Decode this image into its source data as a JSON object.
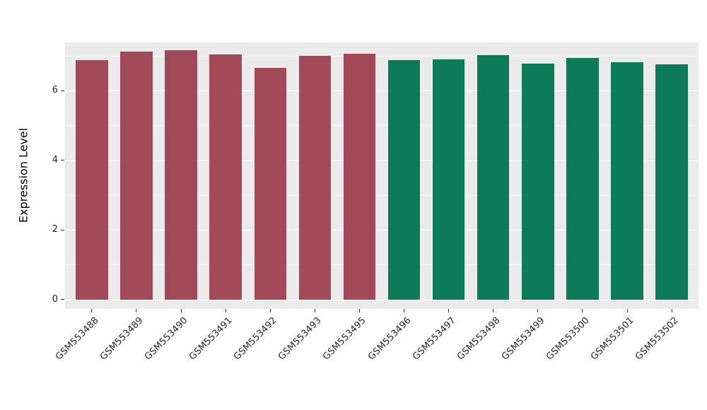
{
  "chart_data": {
    "type": "bar",
    "title": "",
    "xlabel": "",
    "ylabel": "Expression Level",
    "categories": [
      "GSM553488",
      "GSM553489",
      "GSM553490",
      "GSM553491",
      "GSM553492",
      "GSM553493",
      "GSM553495",
      "GSM553496",
      "GSM553497",
      "GSM553498",
      "GSM553499",
      "GSM553500",
      "GSM553501",
      "GSM553502"
    ],
    "values": [
      6.87,
      7.12,
      7.16,
      7.03,
      6.65,
      6.99,
      7.05,
      6.87,
      6.89,
      7.01,
      6.77,
      6.93,
      6.81,
      6.75
    ],
    "groups": [
      "A",
      "A",
      "A",
      "A",
      "A",
      "A",
      "A",
      "B",
      "B",
      "B",
      "B",
      "B",
      "B",
      "B"
    ],
    "group_colors": {
      "A": "#A24A5A",
      "B": "#0C7B57"
    },
    "ylim": [
      0,
      7.4
    ],
    "yticks": [
      0,
      2,
      4,
      6
    ],
    "yticks_minor": [
      1,
      3,
      5,
      7
    ],
    "legend": "none",
    "grid": "on",
    "panel_bg": "#EBEBEB",
    "gridline_color": "#FFFFFF",
    "tick_color": "#333333",
    "axis_text_color": "#262626"
  }
}
